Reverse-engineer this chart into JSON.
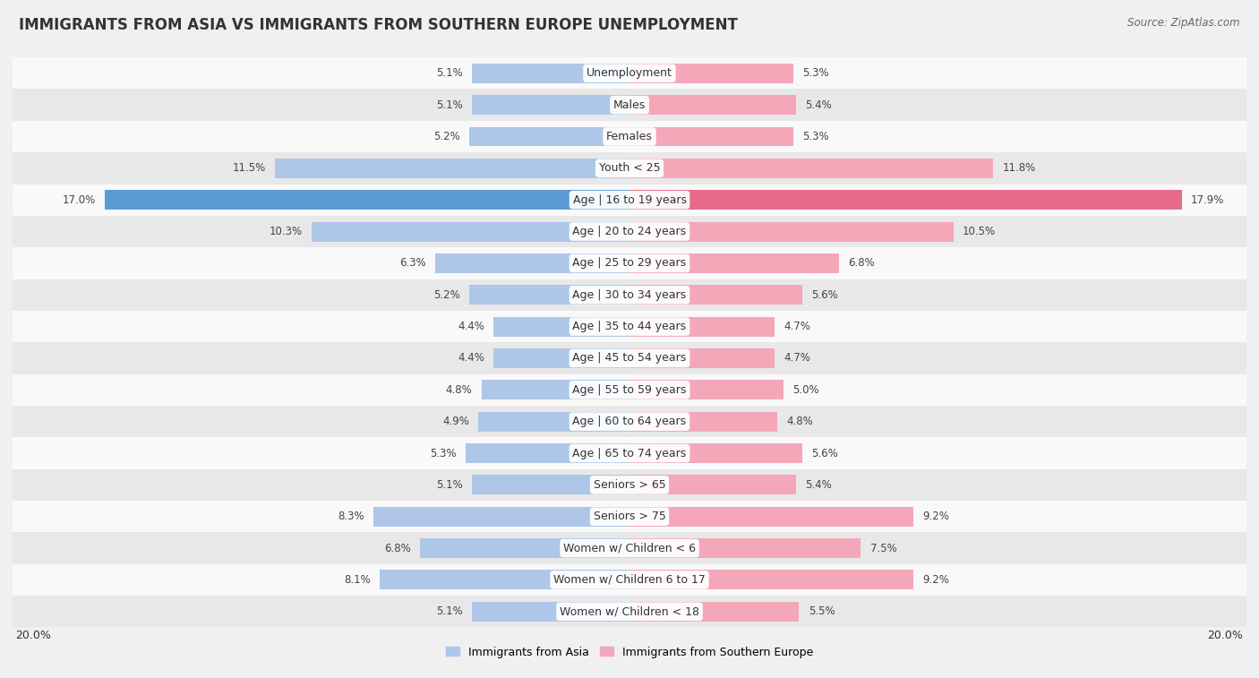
{
  "title": "IMMIGRANTS FROM ASIA VS IMMIGRANTS FROM SOUTHERN EUROPE UNEMPLOYMENT",
  "source": "Source: ZipAtlas.com",
  "categories": [
    "Unemployment",
    "Males",
    "Females",
    "Youth < 25",
    "Age | 16 to 19 years",
    "Age | 20 to 24 years",
    "Age | 25 to 29 years",
    "Age | 30 to 34 years",
    "Age | 35 to 44 years",
    "Age | 45 to 54 years",
    "Age | 55 to 59 years",
    "Age | 60 to 64 years",
    "Age | 65 to 74 years",
    "Seniors > 65",
    "Seniors > 75",
    "Women w/ Children < 6",
    "Women w/ Children 6 to 17",
    "Women w/ Children < 18"
  ],
  "left_values": [
    5.1,
    5.1,
    5.2,
    11.5,
    17.0,
    10.3,
    6.3,
    5.2,
    4.4,
    4.4,
    4.8,
    4.9,
    5.3,
    5.1,
    8.3,
    6.8,
    8.1,
    5.1
  ],
  "right_values": [
    5.3,
    5.4,
    5.3,
    11.8,
    17.9,
    10.5,
    6.8,
    5.6,
    4.7,
    4.7,
    5.0,
    4.8,
    5.6,
    5.4,
    9.2,
    7.5,
    9.2,
    5.5
  ],
  "left_color": "#aec6e8",
  "right_color": "#f4a7b9",
  "highlight_left_color": "#5b9bd5",
  "highlight_right_color": "#e86c8a",
  "highlight_row": 4,
  "axis_limit": 20.0,
  "legend_left": "Immigrants from Asia",
  "legend_right": "Immigrants from Southern Europe",
  "bg_color": "#f0f0f0",
  "row_bg_light": "#f9f9f9",
  "row_bg_dark": "#e8e8e8",
  "bar_height": 0.62,
  "label_fontsize": 9.0,
  "value_fontsize": 8.5,
  "title_fontsize": 12,
  "source_fontsize": 8.5
}
